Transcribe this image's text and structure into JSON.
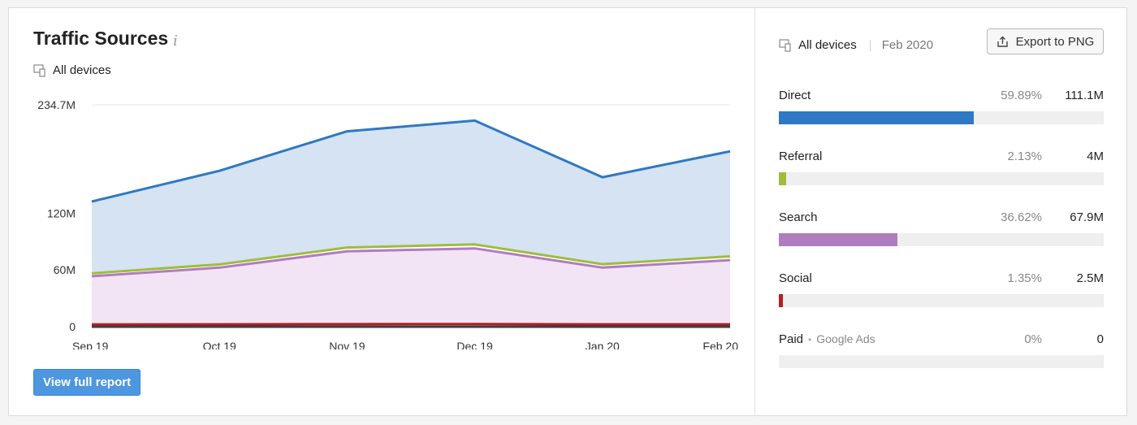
{
  "header": {
    "title": "Traffic Sources",
    "info_glyph": "i",
    "devices_label": "All devices"
  },
  "chart_data": {
    "type": "area",
    "stacked": true,
    "categories": [
      "Sep 19",
      "Oct 19",
      "Nov 19",
      "Dec 19",
      "Jan 20",
      "Feb 20"
    ],
    "y_ticks": [
      "234.7M",
      "120M",
      "60M",
      "0"
    ],
    "y_tick_values": [
      234.7,
      120,
      60,
      0
    ],
    "ylim": [
      0,
      234.7
    ],
    "unit": "M",
    "grid": true,
    "series": [
      {
        "name": "Paid",
        "color": "#2a2f36",
        "values": [
          0,
          0,
          0,
          0,
          0,
          0
        ]
      },
      {
        "name": "Social",
        "color": "#b41f1f",
        "values": [
          2.4,
          2.5,
          2.7,
          2.8,
          2.5,
          2.5
        ]
      },
      {
        "name": "Search",
        "color": "#b07cc0",
        "values": [
          51,
          60,
          77,
          80,
          60,
          67.9
        ]
      },
      {
        "name": "Referral",
        "color": "#9fbd3a",
        "values": [
          3.0,
          3.4,
          4.0,
          4.2,
          3.6,
          4.0
        ]
      },
      {
        "name": "Direct",
        "color": "#2f78c4",
        "values": [
          76,
          99,
          123,
          131,
          92,
          111.1
        ]
      }
    ]
  },
  "report_button": "View full report",
  "right_panel": {
    "devices_label": "All devices",
    "period": "Feb 2020",
    "export_label": "Export to PNG",
    "sources": [
      {
        "name": "Direct",
        "sub": "",
        "pct": "59.89%",
        "value": "111.1M",
        "share": 0.5989,
        "color": "#2f78c4"
      },
      {
        "name": "Referral",
        "sub": "",
        "pct": "2.13%",
        "value": "4M",
        "share": 0.0213,
        "color": "#9fbd3a"
      },
      {
        "name": "Search",
        "sub": "",
        "pct": "36.62%",
        "value": "67.9M",
        "share": 0.3662,
        "color": "#b07cc0"
      },
      {
        "name": "Social",
        "sub": "",
        "pct": "1.35%",
        "value": "2.5M",
        "share": 0.0135,
        "color": "#b41f1f"
      },
      {
        "name": "Paid",
        "sub": "Google Ads",
        "pct": "0%",
        "value": "0",
        "share": 0,
        "color": "#2a2f36"
      }
    ]
  }
}
